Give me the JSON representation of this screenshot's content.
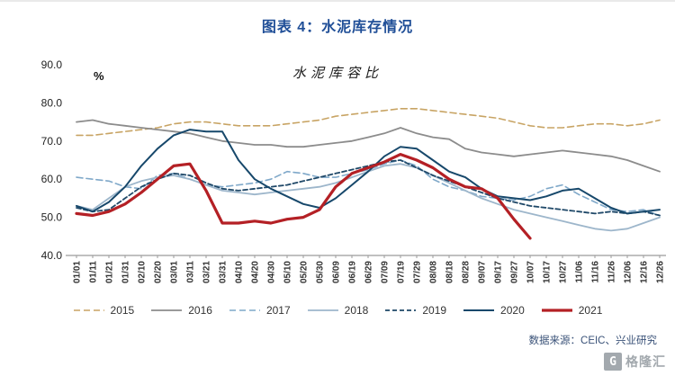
{
  "page": {
    "title": "图表 4：水泥库存情况",
    "source": "数据来源：CEIC、兴业研究",
    "watermark_letter": "G",
    "watermark_text": "格隆汇",
    "title_color": "#1F4E97"
  },
  "chart_data": {
    "type": "line",
    "title": "水泥库容比",
    "ylabel": "%",
    "ylim": [
      40,
      90
    ],
    "yticks": [
      40,
      50,
      60,
      70,
      80,
      90
    ],
    "grid": false,
    "legend_position": "bottom",
    "categories": [
      "01/01",
      "01/11",
      "01/21",
      "01/31",
      "02/10",
      "02/20",
      "03/01",
      "03/11",
      "03/21",
      "03/31",
      "04/10",
      "04/20",
      "04/30",
      "05/10",
      "05/20",
      "05/30",
      "06/09",
      "06/19",
      "06/29",
      "07/09",
      "07/19",
      "07/29",
      "08/08",
      "08/18",
      "08/28",
      "09/07",
      "09/17",
      "09/27",
      "10/07",
      "10/17",
      "10/27",
      "11/06",
      "11/16",
      "11/26",
      "12/06",
      "12/16",
      "12/26"
    ],
    "series": [
      {
        "name": "2015",
        "color": "#C8A464",
        "dash": "7 4",
        "width": 1.6,
        "values": [
          71.5,
          71.5,
          72,
          72.5,
          73,
          73.5,
          74.5,
          75,
          75,
          74.5,
          74,
          74,
          74,
          74.5,
          75,
          75.5,
          76.5,
          77,
          77.5,
          78,
          78.5,
          78.5,
          78,
          77.5,
          77,
          76.5,
          76,
          75,
          74,
          73.5,
          73.5,
          74,
          74.5,
          74.5,
          74,
          74.5,
          75.5
        ]
      },
      {
        "name": "2016",
        "color": "#8C8C8C",
        "dash": null,
        "width": 1.8,
        "values": [
          75,
          75.5,
          74.5,
          74,
          73.5,
          73,
          72.5,
          72,
          71,
          70,
          69.5,
          69,
          69,
          68.5,
          68.5,
          69,
          69.5,
          70,
          71,
          72,
          73.5,
          72,
          71,
          70.5,
          68,
          67,
          66.5,
          66,
          66.5,
          67,
          67.5,
          67,
          66.5,
          66,
          65,
          63.5,
          62
        ]
      },
      {
        "name": "2017",
        "color": "#7FA8C9",
        "dash": "7 4",
        "width": 1.6,
        "values": [
          60.5,
          60,
          59.5,
          58,
          57.5,
          61,
          61.5,
          60,
          58.5,
          58,
          58.5,
          59,
          60,
          62,
          61.5,
          60.5,
          60.5,
          61.5,
          62.5,
          64,
          65,
          63.5,
          60,
          58,
          57,
          55.5,
          55,
          54.5,
          55.5,
          57.5,
          58.5,
          56,
          54,
          52,
          51.5,
          52,
          50.5
        ]
      },
      {
        "name": "2018",
        "color": "#9DB6CB",
        "dash": null,
        "width": 1.8,
        "values": [
          53,
          52,
          55,
          58,
          59.5,
          60.5,
          61,
          60,
          58.5,
          57,
          56.5,
          56,
          56.5,
          57,
          57.5,
          58,
          59,
          60.5,
          62,
          63.5,
          64,
          63,
          61,
          59,
          57,
          55,
          53.5,
          52,
          51,
          50,
          49,
          48,
          47,
          46.5,
          47,
          48.5,
          50
        ]
      },
      {
        "name": "2019",
        "color": "#1F4868",
        "dash": "5 3",
        "width": 1.8,
        "values": [
          52.5,
          51.5,
          52,
          55,
          58,
          60,
          61.5,
          61,
          59,
          57.5,
          57,
          57.5,
          58,
          58.5,
          59.5,
          60.5,
          61.5,
          62.5,
          63.5,
          64.5,
          65,
          63,
          61,
          59.5,
          58,
          56.5,
          55,
          54,
          53,
          52.5,
          52,
          51.5,
          51,
          51.5,
          51,
          51.5,
          50.5
        ]
      },
      {
        "name": "2020",
        "color": "#17486B",
        "dash": null,
        "width": 2,
        "values": [
          53,
          51.5,
          54,
          58,
          63.5,
          68,
          71.5,
          73,
          72.5,
          72.5,
          65,
          60,
          57.5,
          55.5,
          53.5,
          52.5,
          55,
          58.5,
          62,
          66,
          68.5,
          68,
          65,
          62,
          60.5,
          57.5,
          55.5,
          55,
          54.5,
          55.5,
          57,
          57.5,
          55,
          52.5,
          51,
          51.5,
          52
        ]
      },
      {
        "name": "2021",
        "color": "#B42025",
        "dash": null,
        "width": 3.2,
        "values": [
          51,
          50.5,
          51.5,
          53.5,
          56.5,
          60,
          63.5,
          64,
          57,
          48.5,
          48.5,
          49,
          48.5,
          49.5,
          50,
          52,
          58,
          61.5,
          63,
          64.5,
          66.5,
          65,
          63,
          60,
          58,
          57.5,
          55,
          49.5,
          44.5,
          null,
          null,
          null,
          null,
          null,
          null,
          null,
          null
        ]
      }
    ]
  }
}
